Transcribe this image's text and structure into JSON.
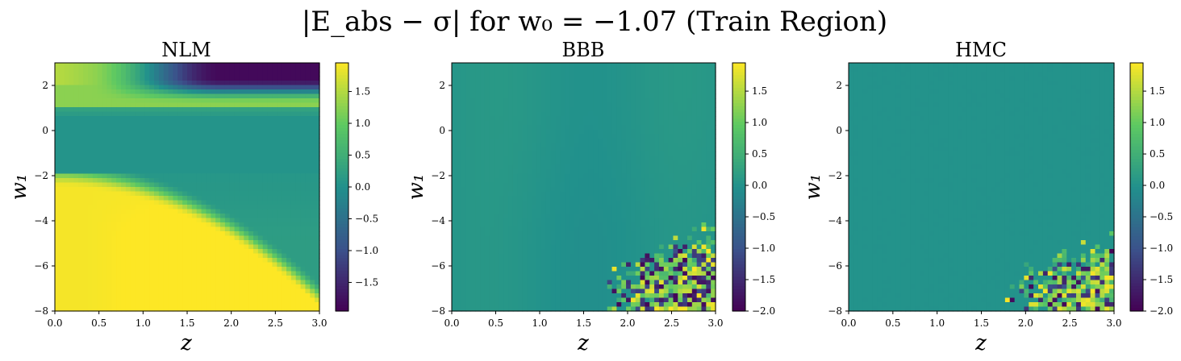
{
  "figure": {
    "title": "|E_abs − σ| for w₀ = −1.07 (Train Region)"
  },
  "colormap": {
    "name": "viridis",
    "stops": [
      "#440154",
      "#3b528b",
      "#21918c",
      "#5ec962",
      "#fde725"
    ]
  },
  "chart_data": [
    {
      "type": "heatmap",
      "title": "NLM",
      "xlabel": "z",
      "ylabel": "w₁",
      "xlim": [
        0,
        3
      ],
      "ylim": [
        -8,
        3
      ],
      "xticks": [
        "0.0",
        "0.5",
        "1.0",
        "1.5",
        "2.0",
        "2.5",
        "3.0"
      ],
      "yticks": [
        "2",
        "0",
        "−2",
        "−4",
        "−6",
        "−8"
      ],
      "colorbar": {
        "vmin": -1.95,
        "vmax": 1.95,
        "ticks": [
          "1.5",
          "1.0",
          "0.5",
          "0.0",
          "−0.5",
          "−1.0",
          "−1.5"
        ]
      },
      "pattern": "smooth bands: high (~1.2) near w₁≈1.5–2.5 at low z, low (~−1.9) at w₁>1.5 for z>1.5, near 0 for w₁ in [−2, 1], saturated high (~1.9) for w₁<−2"
    },
    {
      "type": "heatmap",
      "title": "BBB",
      "xlabel": "z",
      "ylabel": "w₁",
      "xlim": [
        0,
        3
      ],
      "ylim": [
        -8,
        3
      ],
      "xticks": [
        "0.0",
        "0.5",
        "1.0",
        "1.5",
        "2.0",
        "2.5",
        "3.0"
      ],
      "yticks": [
        "2",
        "0",
        "−2",
        "−4",
        "−6",
        "−8"
      ],
      "colorbar": {
        "vmin": -2.0,
        "vmax": 1.95,
        "ticks": [
          "1.5",
          "1.0",
          "0.5",
          "0.0",
          "−0.5",
          "−1.0",
          "−1.5",
          "−2.0"
        ]
      },
      "pattern": "mostly near 0, noisy ±2 values in lower-right (z>1.8, w₁<−4)"
    },
    {
      "type": "heatmap",
      "title": "HMC",
      "xlabel": "z",
      "ylabel": "w₁",
      "xlim": [
        0,
        3
      ],
      "ylim": [
        -8,
        3
      ],
      "xticks": [
        "0.0",
        "0.5",
        "1.0",
        "1.5",
        "2.0",
        "2.5",
        "3.0"
      ],
      "yticks": [
        "2",
        "0",
        "−2",
        "−4",
        "−6",
        "−8"
      ],
      "colorbar": {
        "vmin": -2.0,
        "vmax": 1.95,
        "ticks": [
          "1.5",
          "1.0",
          "0.5",
          "0.0",
          "−0.5",
          "−1.0",
          "−1.5",
          "−2.0"
        ]
      },
      "pattern": "uniform near 0, noisy ±2 values in lower-right (z>1.9, w₁<−4.5)"
    }
  ]
}
